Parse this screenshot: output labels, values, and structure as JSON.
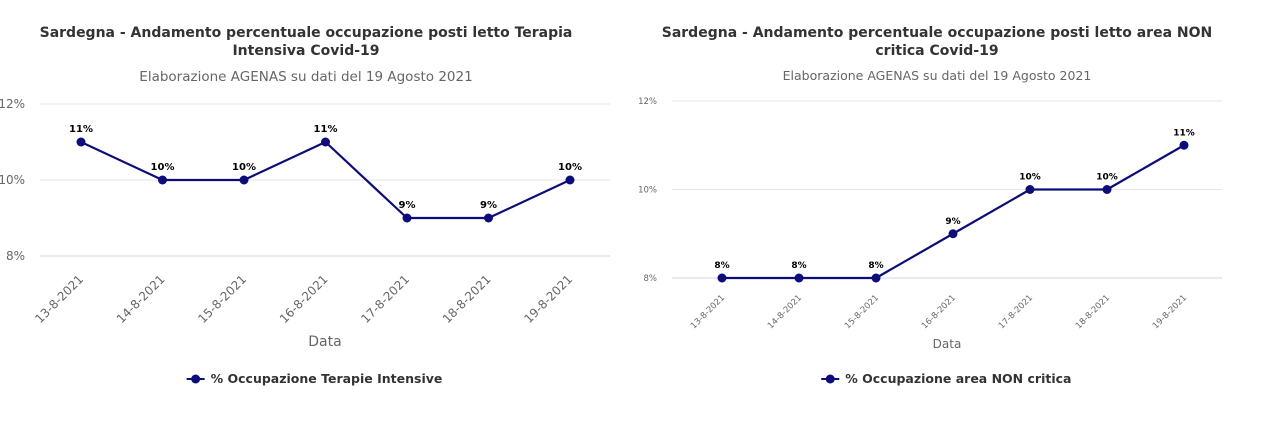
{
  "chart_data": [
    {
      "type": "line",
      "title_lines": [
        "Sardegna - Andamento percentuale occupazione posti letto Terapia",
        "Intensiva Covid-19"
      ],
      "subtitle": "Elaborazione AGENAS su dati del 19 Agosto 2021",
      "xlabel": "Data",
      "ylabel": "",
      "categories": [
        "13-8-2021",
        "14-8-2021",
        "15-8-2021",
        "16-8-2021",
        "17-8-2021",
        "18-8-2021",
        "19-8-2021"
      ],
      "series": [
        {
          "name": "% Occupazione Terapie Intensive",
          "values": [
            11,
            10,
            10,
            11,
            9,
            9,
            10
          ]
        }
      ],
      "data_labels": [
        "11%",
        "10%",
        "10%",
        "11%",
        "9%",
        "9%",
        "10%"
      ],
      "y_ticks": [
        8,
        10,
        12
      ],
      "y_tick_labels": [
        "8%",
        "10%",
        "12%"
      ],
      "ylim": [
        8,
        12
      ],
      "grid": true,
      "legend_position": "bottom-center",
      "color": "#0d0d7a"
    },
    {
      "type": "line",
      "title_lines": [
        "Sardegna - Andamento percentuale occupazione posti letto area NON",
        "critica Covid-19"
      ],
      "subtitle": "Elaborazione AGENAS su dati del 19 Agosto 2021",
      "xlabel": "Data",
      "ylabel": "",
      "categories": [
        "13-8-2021",
        "14-8-2021",
        "15-8-2021",
        "16-8-2021",
        "17-8-2021",
        "18-8-2021",
        "19-8-2021"
      ],
      "series": [
        {
          "name": "% Occupazione area NON critica",
          "values": [
            8,
            8,
            8,
            9,
            10,
            10,
            11
          ]
        }
      ],
      "data_labels": [
        "8%",
        "8%",
        "8%",
        "9%",
        "10%",
        "10%",
        "11%"
      ],
      "y_ticks": [
        8,
        10,
        12
      ],
      "y_tick_labels": [
        "8%",
        "10%",
        "12%"
      ],
      "ylim": [
        8,
        12
      ],
      "grid": true,
      "legend_position": "bottom-center",
      "color": "#0d0d7a"
    }
  ]
}
